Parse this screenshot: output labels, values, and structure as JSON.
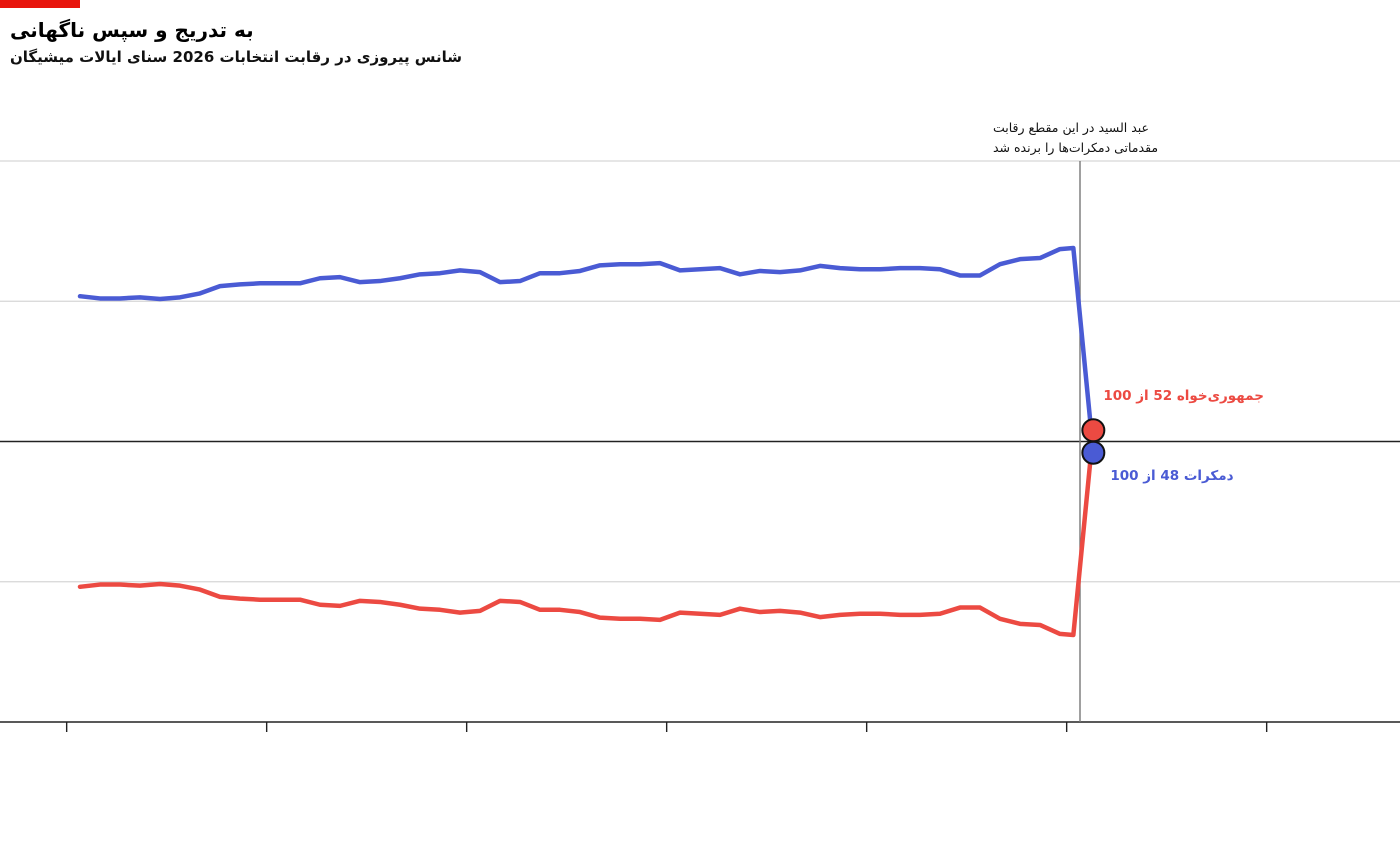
{
  "chart_data": {
    "type": "line",
    "title": "به تدریج و سپس ناگهانی",
    "subtitle": "شانس پیروزی در رقابت انتخابات 2026 سنای ایالات میشیگان",
    "x": [
      2,
      5,
      8,
      11,
      14,
      17,
      20,
      23,
      26,
      29,
      32,
      35,
      38,
      41,
      44,
      47,
      50,
      53,
      56,
      59,
      62,
      65,
      68,
      71,
      74,
      77,
      80,
      83,
      86,
      89,
      92,
      95,
      98,
      101,
      104,
      107,
      110,
      113,
      116,
      119,
      122,
      125,
      128,
      131,
      134,
      137,
      140,
      143,
      146,
      149,
      151,
      154
    ],
    "series": [
      {
        "name": "دمکرات",
        "color": "#4a5bd4",
        "end_label": "48 از 100",
        "values": [
          75.9,
          75.5,
          75.5,
          75.7,
          75.4,
          75.7,
          76.4,
          77.7,
          78.0,
          78.2,
          78.2,
          78.2,
          79.1,
          79.3,
          78.4,
          78.6,
          79.1,
          79.8,
          80.0,
          80.5,
          80.2,
          78.4,
          78.6,
          80.0,
          80.0,
          80.4,
          81.4,
          81.6,
          81.6,
          81.8,
          80.5,
          80.7,
          80.9,
          79.8,
          80.4,
          80.2,
          80.5,
          81.3,
          80.9,
          80.7,
          80.7,
          80.9,
          80.9,
          80.7,
          79.6,
          79.6,
          81.6,
          82.5,
          82.7,
          84.3,
          84.5,
          48
        ]
      },
      {
        "name": "جمهوری‌خواه",
        "color": "#ec4a42",
        "end_label": "52 از 100",
        "values": [
          24.1,
          24.5,
          24.5,
          24.3,
          24.6,
          24.3,
          23.6,
          22.3,
          22.0,
          21.8,
          21.8,
          21.8,
          20.9,
          20.7,
          21.6,
          21.4,
          20.9,
          20.2,
          20.0,
          19.5,
          19.8,
          21.6,
          21.4,
          20.0,
          20.0,
          19.6,
          18.6,
          18.4,
          18.4,
          18.2,
          19.5,
          19.3,
          19.1,
          20.2,
          19.6,
          19.8,
          19.5,
          18.7,
          19.1,
          19.3,
          19.3,
          19.1,
          19.1,
          19.3,
          20.4,
          20.4,
          18.4,
          17.5,
          17.3,
          15.7,
          15.5,
          52
        ]
      }
    ],
    "xlim": [
      -10,
      200
    ],
    "xticks": [
      0,
      30,
      60,
      90,
      120,
      150,
      180
    ],
    "ylim": [
      0,
      100
    ],
    "yticks": [
      0,
      25,
      50,
      75,
      100
    ],
    "reference_line": 50,
    "grid": true,
    "annotation": {
      "x": 152,
      "lines": [
        "عبد السید در این مقطع رقابت",
        "مقدماتی دمکرات‌ها را برنده شد"
      ]
    }
  }
}
